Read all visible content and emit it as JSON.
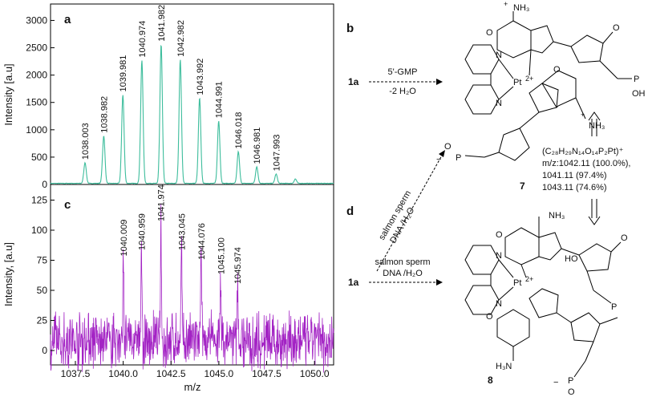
{
  "chart_data": [
    {
      "panel": "a",
      "type": "line",
      "ylabel": "Intensity [a.u]",
      "ylim": [
        0,
        3300
      ],
      "yticks": [
        0,
        500,
        1000,
        1500,
        2000,
        2500,
        3000
      ],
      "xlim": [
        1036.2,
        1051.0
      ],
      "color": "#3dbd9c",
      "peaks": [
        {
          "x": 1038.003,
          "y": 380,
          "label": "1038.003"
        },
        {
          "x": 1038.982,
          "y": 870,
          "label": "1038.982"
        },
        {
          "x": 1039.981,
          "y": 1620,
          "label": "1039.981"
        },
        {
          "x": 1040.974,
          "y": 2250,
          "label": "1040.974"
        },
        {
          "x": 1041.982,
          "y": 2540,
          "label": "1041.982"
        },
        {
          "x": 1042.982,
          "y": 2260,
          "label": "1042.982"
        },
        {
          "x": 1043.992,
          "y": 1560,
          "label": "1043.992"
        },
        {
          "x": 1044.991,
          "y": 1140,
          "label": "1044.991"
        },
        {
          "x": 1046.018,
          "y": 580,
          "label": "1046.018"
        },
        {
          "x": 1046.981,
          "y": 300,
          "label": "1046.981"
        },
        {
          "x": 1047.993,
          "y": 170,
          "label": "1047.993"
        },
        {
          "x": 1049.0,
          "y": 80,
          "label": ""
        }
      ]
    },
    {
      "panel": "c",
      "type": "line",
      "ylabel": "Intensity, [a.u]",
      "xlabel": "m/z",
      "ylim": [
        -12,
        138
      ],
      "yticks": [
        0,
        25,
        50,
        75,
        100,
        125
      ],
      "xlim": [
        1036.2,
        1051.0
      ],
      "xticks": [
        1037.5,
        1040.0,
        1042.5,
        1045.0,
        1047.5,
        1050.0
      ],
      "xticklabels": [
        "1037.5",
        "1040.0",
        "1042.5",
        "1045.0",
        "1047.5",
        "1050.0"
      ],
      "color": "#a323c4",
      "peaks": [
        {
          "x": 1040.009,
          "y": 75,
          "label": "1040.009"
        },
        {
          "x": 1040.959,
          "y": 80,
          "label": "1040.959"
        },
        {
          "x": 1041.974,
          "y": 104,
          "label": "1041.974"
        },
        {
          "x": 1043.045,
          "y": 80,
          "label": "1043.045"
        },
        {
          "x": 1044.076,
          "y": 72,
          "label": "1044.076"
        },
        {
          "x": 1045.1,
          "y": 60,
          "label": "1045.100"
        },
        {
          "x": 1045.974,
          "y": 52,
          "label": "1045.974"
        }
      ]
    }
  ],
  "panels": {
    "b": {
      "letter": "b",
      "reactant": "1a",
      "reagent": "5'-GMP",
      "condition": "-2 H₂O",
      "product": "7",
      "formula": "(C₂₈H₂₉N₁₄O₁₄P₂Pt)⁺",
      "mz_lines": [
        "m/z:1042.11 (100.0%),",
        "1041.11 (97.4%)",
        "1043.11 (74.6%)"
      ]
    },
    "d": {
      "letter": "d",
      "reactant": "1a",
      "reagent_line1": "salmon sperm",
      "reagent_line2": "DNA /H₂O",
      "diag_line1": "salmon sperm",
      "diag_line2": "DNA /H₂O",
      "product": "8"
    },
    "chem_text": {
      "nh3_plus": "NH₃",
      "plus": "+",
      "o": "O",
      "n": "N",
      "h": "H",
      "oh": "OH",
      "p": "P",
      "pt": "Pt",
      "two_plus": "2+",
      "minus": "−",
      "ho": "HO",
      "h3n": "H₃N"
    }
  }
}
